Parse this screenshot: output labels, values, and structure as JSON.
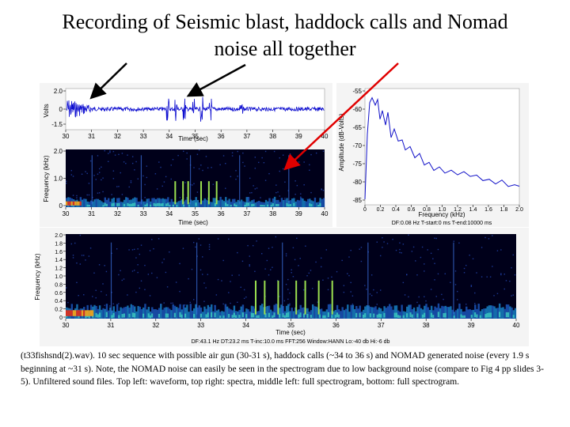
{
  "title_line1": "Recording of Seismic blast, haddock calls and Nomad",
  "title_line2": "noise all together",
  "caption": "(t33fishsnd(2).wav). 10 sec sequence with possible air gun (30-31 s), haddock calls (~34 to 36 s) and NOMAD generated noise (every 1.9 s beginning at ~31 s).  Note, the NOMAD noise can easily be seen in the spectrogram due to low background noise (compare to Fig 4 pp slides 3-5). Unfiltered sound files. Top left: waveform, top right: spectra, middle left: full spectrogram, bottom: full spectrogram.",
  "colors": {
    "waveform": "#1010d0",
    "spectrum": "#1010c8",
    "arrow_black": "#000000",
    "arrow_red": "#e00000",
    "spectro_bg": "#00001a"
  },
  "time_ticks": [
    "30",
    "31",
    "32",
    "33",
    "34",
    "35",
    "36",
    "37",
    "38",
    "39",
    "40"
  ],
  "waveform": {
    "ylabel": "Volts",
    "yticks": [
      "2.0",
      "0",
      "-1.5"
    ],
    "xlabel": "Time (sec)"
  },
  "spectro_mid": {
    "ylabel": "Frequency (kHz)",
    "yticks": [
      "2.0",
      "1.0",
      "0"
    ],
    "xlabel": "Time (sec)"
  },
  "spectrum": {
    "ylabel": "Amplitude (dB-Volts)",
    "yticks": [
      "-55",
      "-60",
      "-65",
      "-70",
      "-75",
      "-80",
      "-85"
    ],
    "xticks": [
      "0",
      "0.2",
      "0.4",
      "0.6",
      "0.8",
      "1.0",
      "1.2",
      "1.4",
      "1.6",
      "1.8",
      "2.0"
    ],
    "xlabel": "Frequency (kHz)",
    "footer": "DF:0.08 Hz   T-start:0 ms   T-end:10000 ms"
  },
  "spectro_big": {
    "ylabel": "Frequency (kHz)",
    "yticks": [
      "2.0",
      "1.8",
      "1.6",
      "1.4",
      "1.2",
      "1.0",
      "0.8",
      "0.6",
      "0.4",
      "0.2",
      "0"
    ],
    "xlabel": "Time (sec)",
    "footer": "DF:43.1 Hz   DT:23.2 ms   T-inc:10.0 ms   FFT:256   Window:HANN   Lo:-40 db   Hi:-6 db"
  }
}
